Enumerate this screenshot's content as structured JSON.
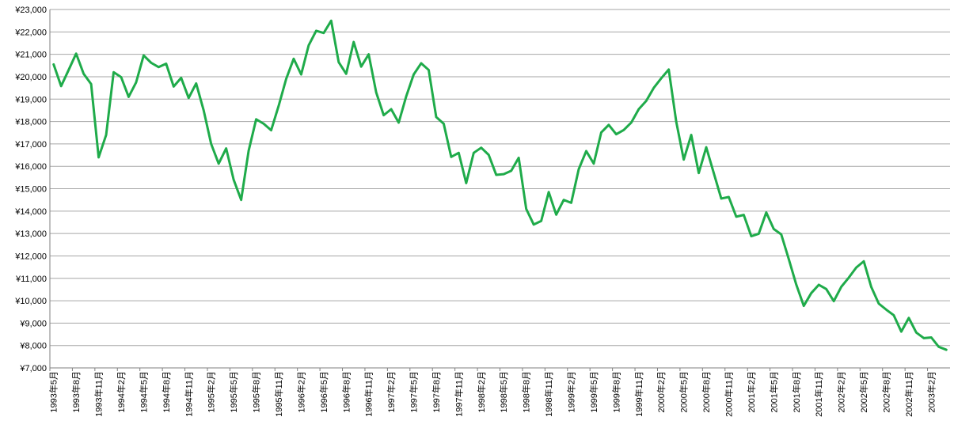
{
  "chart_data": {
    "type": "line",
    "title": "",
    "xlabel": "",
    "ylabel": "",
    "ylim": [
      7000,
      23000
    ],
    "grid": true,
    "legend": "none",
    "y_ticks": [
      "¥7,000",
      "¥8,000",
      "¥9,000",
      "¥10,000",
      "¥11,000",
      "¥12,000",
      "¥13,000",
      "¥14,000",
      "¥15,000",
      "¥16,000",
      "¥17,000",
      "¥18,000",
      "¥19,000",
      "¥20,000",
      "¥21,000",
      "¥22,000",
      "¥23,000"
    ],
    "x_ticks": [
      "1993年5月",
      "1993年8月",
      "1993年11月",
      "1994年2月",
      "1994年5月",
      "1994年8月",
      "1994年11月",
      "1995年2月",
      "1995年5月",
      "1995年8月",
      "1995年11月",
      "1996年2月",
      "1996年5月",
      "1996年8月",
      "1996年11月",
      "1997年2月",
      "1997年5月",
      "1997年8月",
      "1997年11月",
      "1998年2月",
      "1998年5月",
      "1998年8月",
      "1998年11月",
      "1999年2月",
      "1999年5月",
      "1999年8月",
      "1999年11月",
      "2000年2月",
      "2000年5月",
      "2000年8月",
      "2000年11月",
      "2001年2月",
      "2001年5月",
      "2001年8月",
      "2001年11月",
      "2002年2月",
      "2002年5月",
      "2002年8月",
      "2002年11月",
      "2003年2月"
    ],
    "line_color": "#1fab4a",
    "series": [
      {
        "values": [
          20550,
          19580,
          20300,
          21030,
          20130,
          19670,
          16400,
          17400,
          20200,
          19980,
          19100,
          19750,
          20950,
          20620,
          20430,
          20580,
          19560,
          19950,
          19050,
          19700,
          18500,
          17000,
          16120,
          16800,
          15400,
          14500,
          16700,
          18100,
          17900,
          17610,
          18700,
          19900,
          20800,
          20100,
          21400,
          22050,
          21950,
          22500,
          20650,
          20130,
          21550,
          20450,
          21000,
          19300,
          18280,
          18550,
          17950,
          19120,
          20100,
          20600,
          20300,
          18200,
          17900,
          16420,
          16600,
          15250,
          16600,
          16830,
          16510,
          15620,
          15650,
          15800,
          16380,
          14100,
          13400,
          13560,
          14850,
          13840,
          14500,
          14370,
          15870,
          16680,
          16120,
          17510,
          17850,
          17430,
          17620,
          17950,
          18550,
          18920,
          19500,
          19930,
          20320,
          17990,
          16300,
          17400,
          15700,
          16850,
          15700,
          14560,
          14630,
          13750,
          13830,
          12880,
          12990,
          13940,
          13200,
          12960,
          11860,
          10720,
          9770,
          10340,
          10710,
          10520,
          9980,
          10620,
          11030,
          11480,
          11760,
          10610,
          9870,
          9600,
          9350,
          8620,
          9230,
          8580,
          8330,
          8360,
          7940,
          7810
        ]
      }
    ]
  }
}
